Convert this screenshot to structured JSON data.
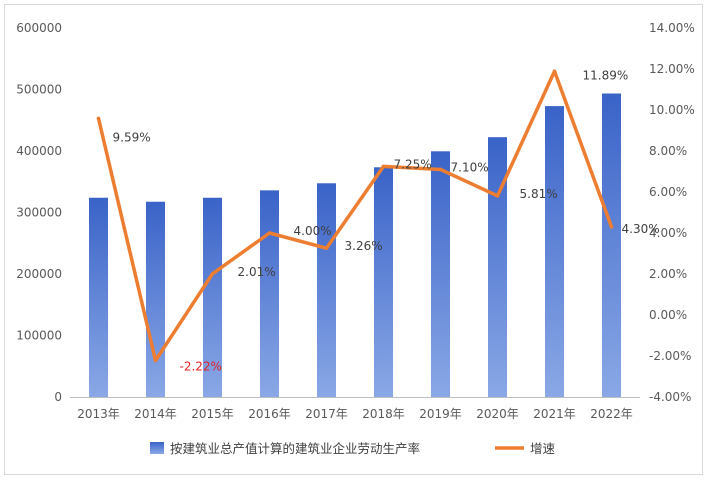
{
  "chart_data": {
    "type": "bar",
    "categories": [
      "2013年",
      "2014年",
      "2015年",
      "2016年",
      "2017年",
      "2018年",
      "2019年",
      "2020年",
      "2021年",
      "2022年"
    ],
    "series": [
      {
        "name": "按建筑业总产值计算的建筑业企业劳动生产率",
        "type": "bar",
        "axis": "left",
        "color": "#4472c4",
        "values": [
          324000,
          317500,
          324000,
          336000,
          347500,
          373500,
          399500,
          422500,
          473000,
          493500
        ]
      },
      {
        "name": "增速",
        "type": "line",
        "axis": "right",
        "color": "#ed7d31",
        "values": [
          9.59,
          -2.22,
          2.01,
          4.0,
          3.26,
          7.25,
          7.1,
          5.81,
          11.89,
          4.3
        ]
      }
    ],
    "data_labels": [
      "9.59%",
      "-2.22%",
      "2.01%",
      "4.00%",
      "3.26%",
      "7.25%",
      "7.10%",
      "5.81%",
      "11.89%",
      "4.30%"
    ],
    "left_axis": {
      "ylim": [
        0,
        600000
      ],
      "ticks": [
        "0",
        "100000",
        "200000",
        "300000",
        "400000",
        "500000",
        "600000"
      ]
    },
    "right_axis": {
      "ylim": [
        -4,
        14
      ],
      "ticks": [
        "-4.00%",
        "-2.00%",
        "0.00%",
        "2.00%",
        "4.00%",
        "6.00%",
        "8.00%",
        "10.00%",
        "12.00%",
        "14.00%"
      ]
    },
    "grid": false,
    "legend_position": "bottom",
    "title": "",
    "xlabel": "",
    "ylabel": ""
  }
}
